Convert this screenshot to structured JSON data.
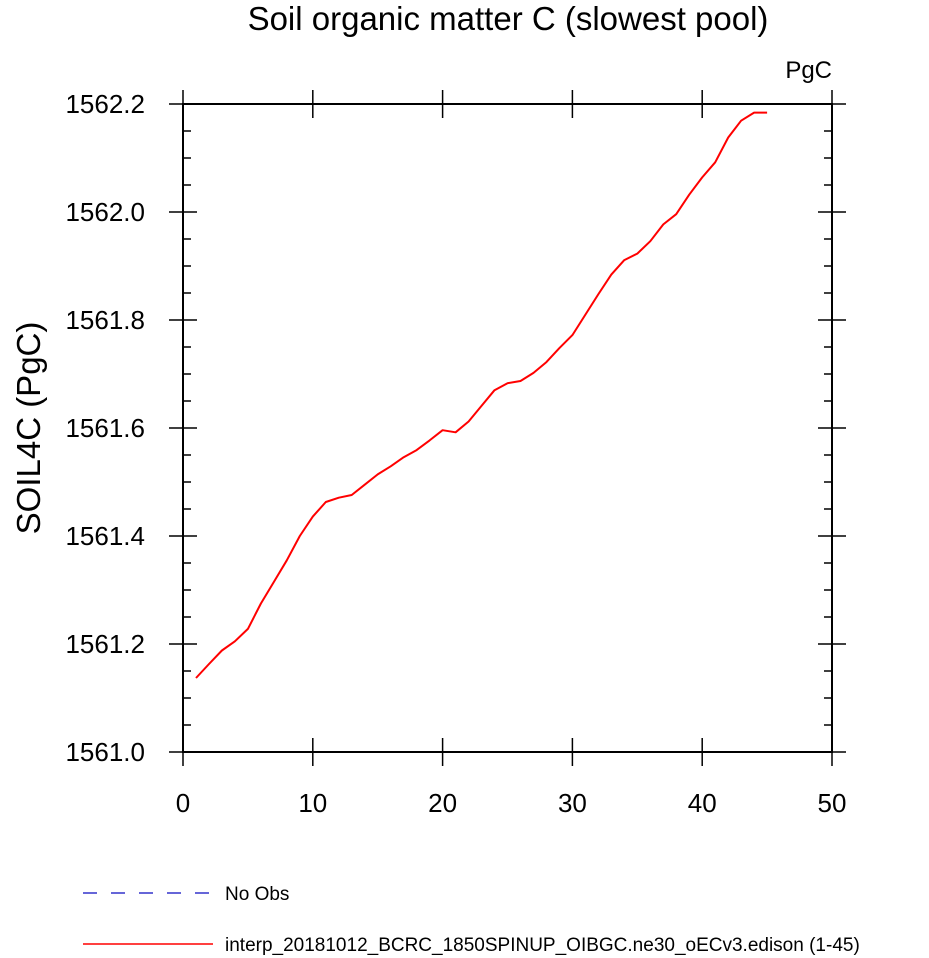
{
  "chart_data": {
    "type": "line",
    "title": "Soil organic matter C (slowest pool)",
    "units": "PgC",
    "ylabel": "SOIL4C  (PgC)",
    "xlabel": "",
    "xlim": [
      0,
      50
    ],
    "ylim": [
      1561.0,
      1562.2
    ],
    "x_ticks": [
      "0",
      "10",
      "20",
      "30",
      "40",
      "50"
    ],
    "y_ticks": [
      "1561.0",
      "1561.2",
      "1561.4",
      "1561.6",
      "1561.8",
      "1562.0",
      "1562.2"
    ],
    "grid": false,
    "series": [
      {
        "name": "interp_20181012_BCRC_1850SPINUP_OIBGC.ne30_oECv3.edison (1-45)",
        "color": "#ff0000",
        "style": "solid",
        "x": [
          1,
          2,
          3,
          4,
          5,
          6,
          7,
          8,
          9,
          10,
          11,
          12,
          13,
          14,
          15,
          16,
          17,
          18,
          19,
          20,
          21,
          22,
          23,
          24,
          25,
          26,
          27,
          28,
          29,
          30,
          31,
          32,
          33,
          34,
          35,
          36,
          37,
          38,
          39,
          40,
          41,
          42,
          43,
          44,
          45
        ],
        "y": [
          1561.137,
          1561.163,
          1561.188,
          1561.205,
          1561.228,
          1561.275,
          1561.315,
          1561.355,
          1561.4,
          1561.436,
          1561.463,
          1561.471,
          1561.476,
          1561.495,
          1561.514,
          1561.529,
          1561.546,
          1561.559,
          1561.577,
          1561.596,
          1561.592,
          1561.612,
          1561.641,
          1561.67,
          1561.683,
          1561.687,
          1561.702,
          1561.722,
          1561.748,
          1561.772,
          1561.81,
          1561.848,
          1561.884,
          1561.911,
          1561.923,
          1561.946,
          1561.977,
          1561.996,
          1562.032,
          1562.064,
          1562.092,
          1562.138,
          1562.169,
          1562.184,
          1562.184
        ]
      }
    ],
    "legend": [
      {
        "label": "No Obs",
        "color": "#3333cc",
        "style": "dashed"
      },
      {
        "label": "interp_20181012_BCRC_1850SPINUP_OIBGC.ne30_oECv3.edison (1-45)",
        "color": "#ff0000",
        "style": "solid"
      }
    ],
    "legend_position": "bottom"
  }
}
